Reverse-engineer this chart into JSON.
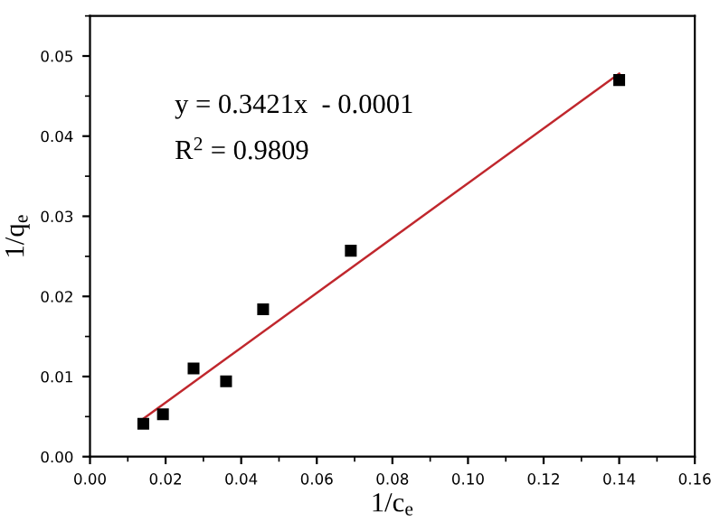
{
  "chart_data": {
    "type": "scatter",
    "xlabel": "1/c$_{e}$",
    "ylabel": "1/q$_{e}$",
    "xlim": [
      0,
      0.16
    ],
    "ylim": [
      0,
      0.055
    ],
    "xticks": [
      {
        "value": 0,
        "label": "0.00"
      },
      {
        "value": 0.02,
        "label": "0.02"
      },
      {
        "value": 0.04,
        "label": "0.04"
      },
      {
        "value": 0.06,
        "label": "0.06"
      },
      {
        "value": 0.08,
        "label": "0.08"
      },
      {
        "value": 0.1,
        "label": "0.10"
      },
      {
        "value": 0.12,
        "label": "0.12"
      },
      {
        "value": 0.14,
        "label": "0.14"
      },
      {
        "value": 0.16,
        "label": "0.16"
      }
    ],
    "yticks": [
      {
        "value": 0,
        "label": "0.00"
      },
      {
        "value": 0.01,
        "label": "0.01"
      },
      {
        "value": 0.02,
        "label": "0.02"
      },
      {
        "value": 0.03,
        "label": "0.03"
      },
      {
        "value": 0.04,
        "label": "0.04"
      },
      {
        "value": 0.05,
        "label": "0.05"
      }
    ],
    "grid": false,
    "legend": false,
    "series": [
      {
        "marker": "square",
        "color": "#000000",
        "x": [
          0.0141,
          0.0193,
          0.0274,
          0.036,
          0.0458,
          0.069,
          0.14
        ],
        "values": [
          0.0041,
          0.0053,
          0.011,
          0.0094,
          0.0184,
          0.0257,
          0.047
        ]
      },
      {
        "type": "line",
        "marker": "none",
        "color": "#c0272d",
        "x": [
          0.014,
          0.14
        ],
        "values": [
          0.0047,
          0.0478
        ]
      }
    ],
    "annotations": [
      "y = 0.3421x  - 0.0001",
      "R$^{2}$ = 0.9809"
    ]
  }
}
